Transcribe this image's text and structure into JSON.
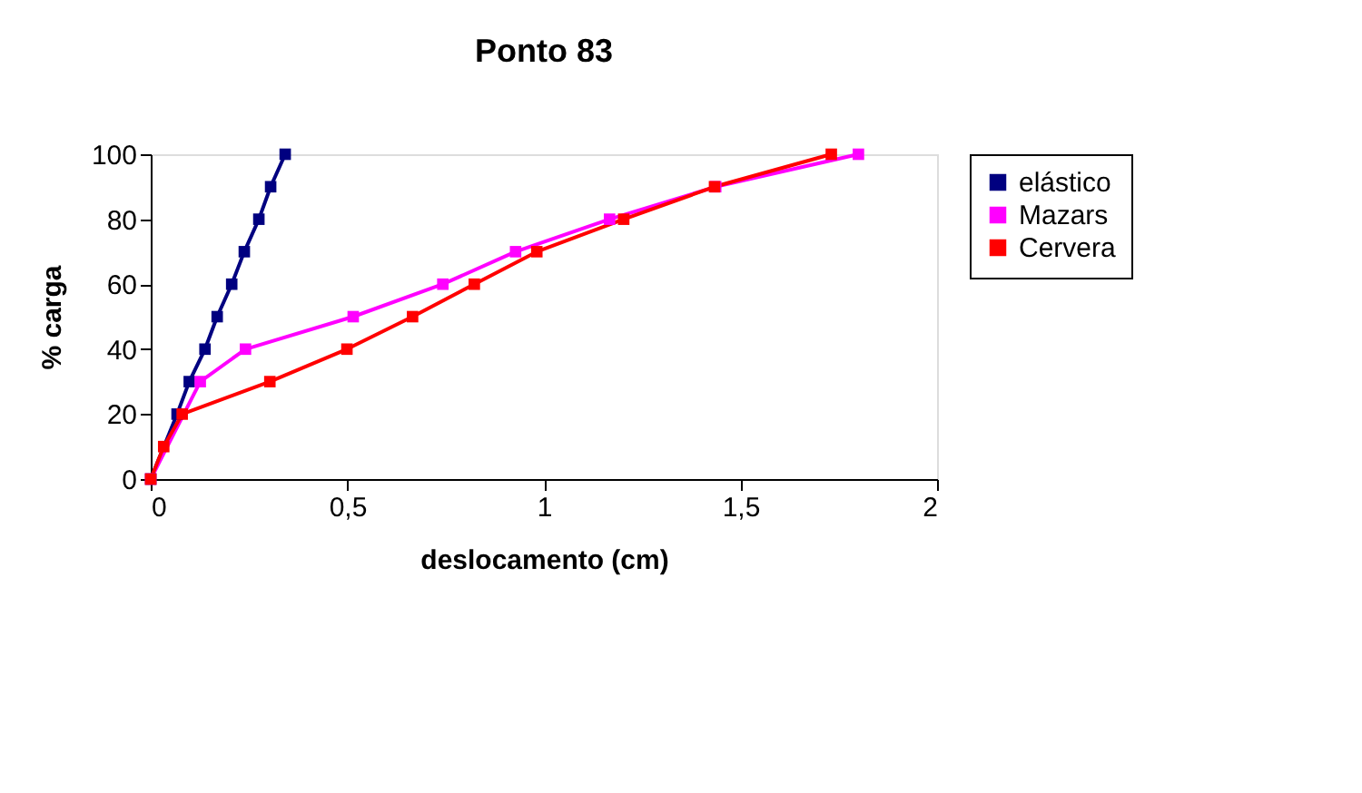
{
  "chart_data": {
    "type": "line",
    "title": "Ponto 83",
    "xlabel": "deslocamento (cm)",
    "ylabel": "% carga",
    "xlim": [
      0,
      2
    ],
    "xticks": [
      0,
      {
        "value": 0.5,
        "label": "0,5"
      },
      1,
      {
        "value": 1.5,
        "label": "1,5"
      },
      2
    ],
    "ylim": [
      0,
      100
    ],
    "yticks": [
      0,
      20,
      40,
      60,
      80,
      100
    ],
    "grid": false,
    "legend": "right",
    "marker": "square",
    "line_style": "solid",
    "series": [
      {
        "name": "elástico",
        "color": "#000080",
        "x": [
          0,
          0.067,
          0.098,
          0.138,
          0.169,
          0.206,
          0.238,
          0.275,
          0.305,
          0.342
        ],
        "values": [
          0,
          20,
          30,
          40,
          50,
          60,
          70,
          80,
          90,
          100
        ]
      },
      {
        "name": "Mazars",
        "color": "#ff00ff",
        "x": [
          0,
          0.126,
          0.241,
          0.515,
          0.743,
          0.928,
          1.167,
          1.437,
          1.8
        ],
        "values": [
          0,
          30,
          40,
          50,
          60,
          70,
          80,
          90,
          100
        ]
      },
      {
        "name": "Cervera",
        "color": "#ff0000",
        "x": [
          0,
          0.033,
          0.08,
          0.303,
          0.499,
          0.666,
          0.823,
          0.982,
          1.203,
          1.434,
          1.731
        ],
        "values": [
          0,
          10,
          20,
          30,
          40,
          50,
          60,
          70,
          80,
          90,
          100
        ]
      }
    ]
  }
}
